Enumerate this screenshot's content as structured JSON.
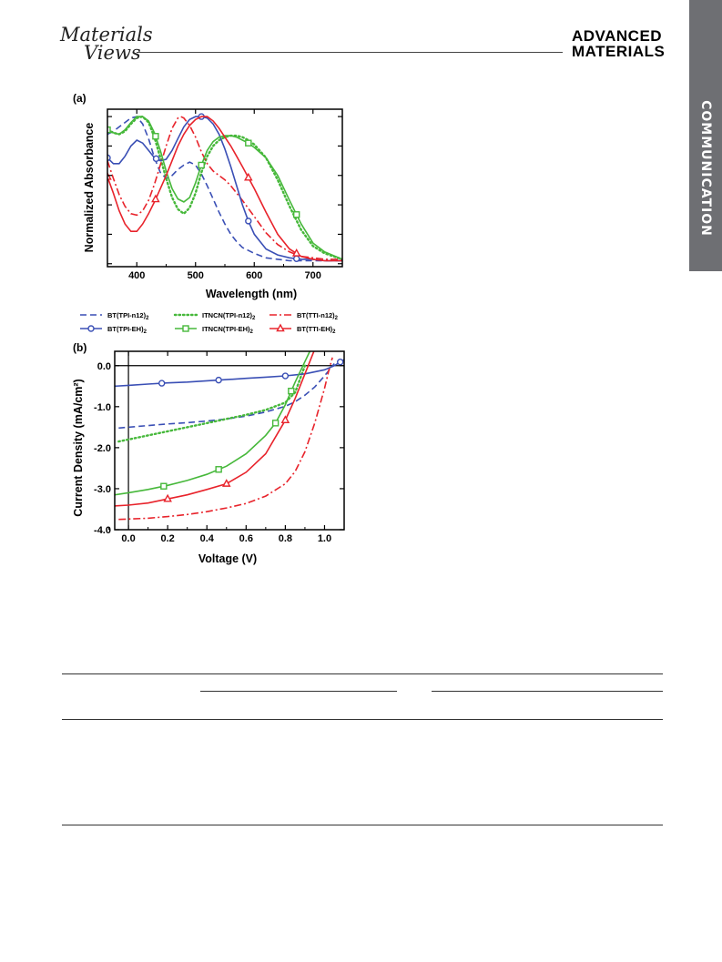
{
  "header": {
    "left_logo_line1": "Materials",
    "left_logo_line2": "Views",
    "right_logo_line1": "ADVANCED",
    "right_logo_line2": "MATERIALS",
    "side_tab": "COMMUNICATION"
  },
  "colors": {
    "blue": "#3a4fb5",
    "green": "#46b83a",
    "red": "#e8232b",
    "side_tab_bg": "#6e6f73"
  },
  "legend": [
    {
      "label": "BT(TPI-n12)2",
      "color": "blue",
      "dash": "dash",
      "marker": "none"
    },
    {
      "label": "ITNCN(TPI-n12)2",
      "color": "green",
      "dash": "dot",
      "marker": "none"
    },
    {
      "label": "BT(TTI-n12)2",
      "color": "red",
      "dash": "dashdot",
      "marker": "none"
    },
    {
      "label": "BT(TPI-EH)2",
      "color": "blue",
      "dash": "solid",
      "marker": "circle"
    },
    {
      "label": "ITNCN(TPI-EH)2",
      "color": "green",
      "dash": "solid",
      "marker": "square"
    },
    {
      "label": "BT(TTI-EH)2",
      "color": "red",
      "dash": "solid",
      "marker": "triangle"
    }
  ],
  "chart_data": [
    {
      "panel": "(a)",
      "type": "line",
      "xlabel": "Wavelength (nm)",
      "ylabel": "Normalized Absorbance",
      "xlim": [
        350,
        750
      ],
      "ylim": [
        -0.02,
        1.05
      ],
      "xticks": [
        "400",
        "500",
        "600",
        "700"
      ],
      "show_y_tick_labels": false,
      "series": [
        {
          "name": "BT(TPI-n12)2",
          "color": "blue",
          "dash": "dash",
          "marker": "none",
          "x": [
            350,
            360,
            370,
            380,
            390,
            400,
            410,
            420,
            430,
            440,
            450,
            460,
            470,
            480,
            490,
            500,
            510,
            520,
            530,
            540,
            550,
            560,
            570,
            580,
            600,
            620,
            640,
            660,
            680,
            700,
            720,
            750
          ],
          "y": [
            0.88,
            0.9,
            0.93,
            0.96,
            0.99,
            1.0,
            0.95,
            0.85,
            0.72,
            0.62,
            0.58,
            0.6,
            0.64,
            0.67,
            0.69,
            0.67,
            0.61,
            0.53,
            0.44,
            0.35,
            0.27,
            0.2,
            0.15,
            0.11,
            0.07,
            0.04,
            0.03,
            0.02,
            0.02,
            0.02,
            0.02,
            0.02
          ]
        },
        {
          "name": "ITNCN(TPI-n12)2",
          "color": "green",
          "dash": "dot",
          "marker": "none",
          "x": [
            350,
            360,
            370,
            380,
            390,
            400,
            410,
            420,
            430,
            440,
            450,
            460,
            470,
            480,
            490,
            500,
            510,
            520,
            530,
            540,
            550,
            560,
            570,
            580,
            590,
            600,
            620,
            640,
            660,
            680,
            700,
            720,
            750
          ],
          "y": [
            0.91,
            0.89,
            0.88,
            0.9,
            0.95,
            0.99,
            1.0,
            0.96,
            0.86,
            0.72,
            0.58,
            0.45,
            0.37,
            0.34,
            0.38,
            0.48,
            0.62,
            0.73,
            0.8,
            0.84,
            0.86,
            0.87,
            0.87,
            0.86,
            0.84,
            0.81,
            0.72,
            0.57,
            0.39,
            0.23,
            0.12,
            0.07,
            0.03
          ]
        },
        {
          "name": "BT(TTI-n12)2",
          "color": "red",
          "dash": "dashdot",
          "marker": "none",
          "x": [
            350,
            360,
            370,
            380,
            390,
            400,
            410,
            420,
            430,
            440,
            450,
            460,
            470,
            475,
            480,
            490,
            500,
            510,
            520,
            530,
            540,
            550,
            560,
            570,
            580,
            600,
            620,
            640,
            660,
            680,
            700,
            720,
            750
          ],
          "y": [
            0.7,
            0.58,
            0.47,
            0.39,
            0.34,
            0.33,
            0.36,
            0.43,
            0.54,
            0.67,
            0.8,
            0.92,
            0.99,
            1.0,
            0.99,
            0.94,
            0.86,
            0.76,
            0.68,
            0.63,
            0.6,
            0.57,
            0.53,
            0.48,
            0.43,
            0.32,
            0.21,
            0.13,
            0.08,
            0.05,
            0.04,
            0.03,
            0.03
          ]
        },
        {
          "name": "BT(TPI-EH)2",
          "color": "blue",
          "dash": "solid",
          "marker": "circle",
          "x": [
            350,
            360,
            370,
            380,
            390,
            400,
            410,
            420,
            430,
            440,
            450,
            460,
            470,
            480,
            490,
            500,
            510,
            520,
            530,
            540,
            550,
            560,
            570,
            580,
            590,
            600,
            620,
            640,
            660,
            680,
            700,
            720,
            750
          ],
          "y": [
            0.72,
            0.68,
            0.68,
            0.73,
            0.8,
            0.84,
            0.82,
            0.77,
            0.72,
            0.7,
            0.71,
            0.77,
            0.85,
            0.93,
            0.98,
            1.0,
            1.0,
            0.99,
            0.95,
            0.88,
            0.78,
            0.66,
            0.53,
            0.4,
            0.29,
            0.2,
            0.1,
            0.06,
            0.04,
            0.03,
            0.03,
            0.02,
            0.02
          ],
          "markers_x": [
            350,
            433,
            510,
            590,
            672
          ]
        },
        {
          "name": "ITNCN(TPI-EH)2",
          "color": "green",
          "dash": "solid",
          "marker": "square",
          "x": [
            350,
            360,
            370,
            380,
            390,
            400,
            410,
            420,
            430,
            440,
            450,
            460,
            470,
            480,
            490,
            500,
            510,
            520,
            530,
            540,
            550,
            560,
            570,
            580,
            590,
            600,
            620,
            640,
            660,
            680,
            700,
            720,
            750
          ],
          "y": [
            0.91,
            0.89,
            0.88,
            0.91,
            0.96,
            1.0,
            1.0,
            0.97,
            0.89,
            0.77,
            0.63,
            0.51,
            0.44,
            0.42,
            0.45,
            0.55,
            0.67,
            0.77,
            0.83,
            0.86,
            0.87,
            0.87,
            0.86,
            0.84,
            0.82,
            0.79,
            0.72,
            0.6,
            0.43,
            0.27,
            0.14,
            0.08,
            0.03
          ],
          "markers_x": [
            350,
            432,
            510,
            590,
            672
          ]
        },
        {
          "name": "BT(TTI-EH)2",
          "color": "red",
          "dash": "solid",
          "marker": "triangle",
          "x": [
            350,
            360,
            370,
            380,
            390,
            400,
            410,
            420,
            430,
            440,
            450,
            460,
            470,
            480,
            490,
            500,
            510,
            520,
            530,
            540,
            550,
            560,
            570,
            580,
            600,
            620,
            640,
            660,
            680,
            700,
            720,
            750
          ],
          "y": [
            0.59,
            0.48,
            0.36,
            0.27,
            0.22,
            0.22,
            0.27,
            0.34,
            0.42,
            0.51,
            0.6,
            0.7,
            0.8,
            0.88,
            0.94,
            0.98,
            1.0,
            1.0,
            0.97,
            0.92,
            0.86,
            0.8,
            0.73,
            0.66,
            0.51,
            0.35,
            0.2,
            0.1,
            0.05,
            0.03,
            0.02,
            0.02
          ],
          "markers_x": [
            350,
            432,
            590,
            672
          ]
        }
      ]
    },
    {
      "panel": "(b)",
      "type": "line",
      "xlabel": "Voltage (V)",
      "ylabel": "Current Density (mA/cm²)",
      "xlim": [
        -0.07,
        1.1
      ],
      "ylim": [
        -4.0,
        0.35
      ],
      "xticks": [
        "0.0",
        "0.2",
        "0.4",
        "0.6",
        "0.8",
        "1.0"
      ],
      "yticks": [
        "0.0",
        "-1.0",
        "-2.0",
        "-3.0",
        "-4.0"
      ],
      "series": [
        {
          "name": "BT(TPI-n12)2",
          "color": "blue",
          "dash": "dash",
          "marker": "none",
          "x": [
            -0.05,
            0.0,
            0.1,
            0.2,
            0.3,
            0.4,
            0.5,
            0.6,
            0.7,
            0.8,
            0.85,
            0.9,
            0.95,
            1.0,
            1.05
          ],
          "y": [
            -1.52,
            -1.5,
            -1.46,
            -1.42,
            -1.39,
            -1.35,
            -1.3,
            -1.23,
            -1.13,
            -0.99,
            -0.88,
            -0.72,
            -0.52,
            -0.25,
            0.05
          ]
        },
        {
          "name": "ITNCN(TPI-n12)2",
          "color": "green",
          "dash": "dot",
          "marker": "none",
          "x": [
            -0.05,
            0.0,
            0.1,
            0.2,
            0.3,
            0.4,
            0.5,
            0.6,
            0.7,
            0.8,
            0.85,
            0.9
          ],
          "y": [
            -1.85,
            -1.8,
            -1.7,
            -1.6,
            -1.5,
            -1.4,
            -1.3,
            -1.2,
            -1.08,
            -0.9,
            -0.65,
            0.0
          ]
        },
        {
          "name": "BT(TTI-n12)2",
          "color": "red",
          "dash": "dashdot",
          "marker": "none",
          "x": [
            -0.05,
            0.0,
            0.1,
            0.2,
            0.3,
            0.4,
            0.5,
            0.6,
            0.7,
            0.8,
            0.85,
            0.9,
            0.95,
            1.0,
            1.02,
            1.04
          ],
          "y": [
            -3.75,
            -3.74,
            -3.72,
            -3.68,
            -3.63,
            -3.56,
            -3.47,
            -3.36,
            -3.18,
            -2.88,
            -2.58,
            -2.1,
            -1.4,
            -0.55,
            -0.15,
            0.2
          ]
        },
        {
          "name": "BT(TPI-EH)2",
          "color": "blue",
          "dash": "solid",
          "marker": "circle",
          "x": [
            -0.07,
            0.0,
            0.1,
            0.2,
            0.3,
            0.4,
            0.5,
            0.6,
            0.7,
            0.8,
            0.9,
            1.0,
            1.05,
            1.1
          ],
          "y": [
            -0.5,
            -0.48,
            -0.45,
            -0.42,
            -0.4,
            -0.37,
            -0.34,
            -0.31,
            -0.28,
            -0.25,
            -0.2,
            -0.1,
            0.0,
            0.15
          ],
          "markers_x": [
            0.17,
            0.46,
            0.8,
            1.08
          ]
        },
        {
          "name": "ITNCN(TPI-EH)2",
          "color": "green",
          "dash": "solid",
          "marker": "square",
          "x": [
            -0.07,
            0.0,
            0.1,
            0.2,
            0.3,
            0.4,
            0.5,
            0.6,
            0.7,
            0.75,
            0.8,
            0.85,
            0.9,
            0.95
          ],
          "y": [
            -3.15,
            -3.1,
            -3.02,
            -2.92,
            -2.8,
            -2.65,
            -2.45,
            -2.15,
            -1.7,
            -1.4,
            -0.95,
            -0.4,
            0.1,
            0.6
          ],
          "markers_x": [
            0.18,
            0.46,
            0.75,
            0.83
          ]
        },
        {
          "name": "BT(TTI-EH)2",
          "color": "red",
          "dash": "solid",
          "marker": "triangle",
          "x": [
            -0.07,
            0.0,
            0.1,
            0.2,
            0.3,
            0.4,
            0.5,
            0.6,
            0.7,
            0.8,
            0.85,
            0.9,
            0.95,
            1.0
          ],
          "y": [
            -3.42,
            -3.4,
            -3.35,
            -3.25,
            -3.15,
            -3.02,
            -2.88,
            -2.6,
            -2.15,
            -1.33,
            -0.8,
            -0.2,
            0.4,
            1.0
          ],
          "markers_x": [
            0.2,
            0.5,
            0.8
          ]
        }
      ]
    }
  ]
}
